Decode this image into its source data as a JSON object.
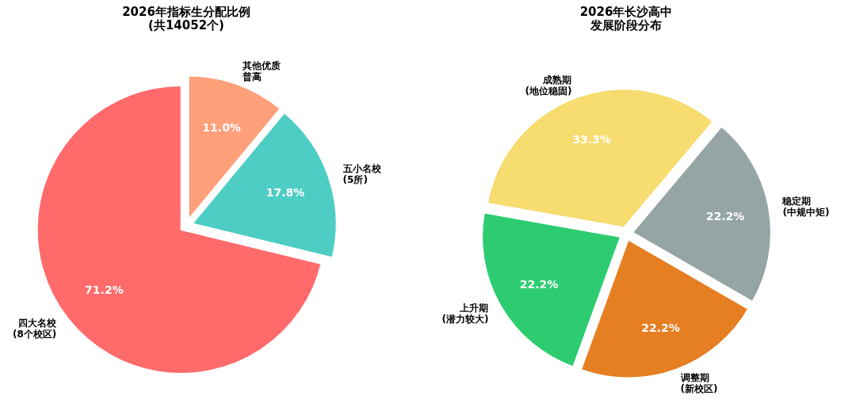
{
  "chart_data": [
    {
      "type": "pie",
      "title": "2026年指标生分配比例\n(共14052个)",
      "categories": [
        "其他优质普高",
        "五小名校\n(5所)",
        "四大名校\n(8个校区)"
      ],
      "values": [
        11.0,
        17.8,
        71.2
      ],
      "colors": [
        "#ffa07a",
        "#4ecdc4",
        "#ff6b6b"
      ],
      "value_labels": [
        "11.0%",
        "17.8%",
        "71.2%"
      ]
    },
    {
      "type": "pie",
      "title": "2026年长沙高中发展阶段分布",
      "categories": [
        "成熟期\n(地位稳固)",
        "稳定期\n(中规中矩)",
        "调整期\n(新校区)",
        "上升期\n(潜力较大)"
      ],
      "values": [
        33.3,
        22.2,
        22.2,
        22.2
      ],
      "colors": [
        "#f7dc6f",
        "#95a5a6",
        "#e67e22",
        "#2ecc71"
      ],
      "value_labels": [
        "33.3%",
        "22.2%",
        "22.2%",
        "22.2%"
      ]
    }
  ]
}
